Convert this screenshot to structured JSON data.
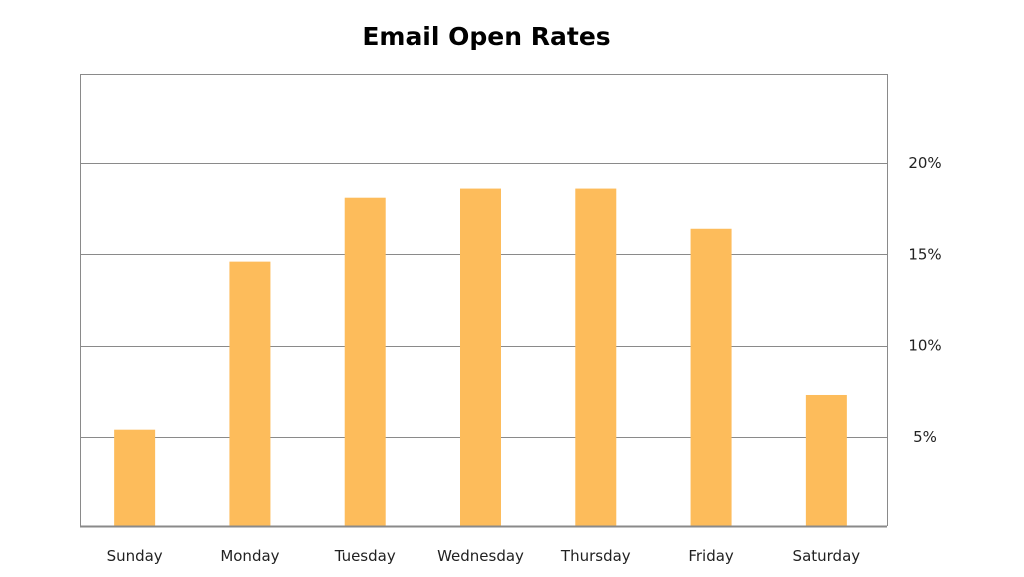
{
  "chart_data": {
    "type": "bar",
    "title": "Email Open Rates",
    "xlabel": "",
    "ylabel": "",
    "categories": [
      "Sunday",
      "Monday",
      "Tuesday",
      "Wednesday",
      "Thursday",
      "Friday",
      "Saturday"
    ],
    "values": [
      5.4,
      14.6,
      18.1,
      18.6,
      18.6,
      16.4,
      7.3
    ],
    "unit": "%",
    "ylim": [
      0,
      25
    ],
    "y_ticks": [
      5,
      10,
      15,
      20
    ],
    "y_tick_labels": [
      "5%",
      "10%",
      "15%",
      "20%"
    ],
    "y_axis_side": "right",
    "grid": true,
    "legend": "none",
    "colors": {
      "bar": "#FDBC5B",
      "grid": "#8a8a8a",
      "text": "#222222"
    }
  }
}
